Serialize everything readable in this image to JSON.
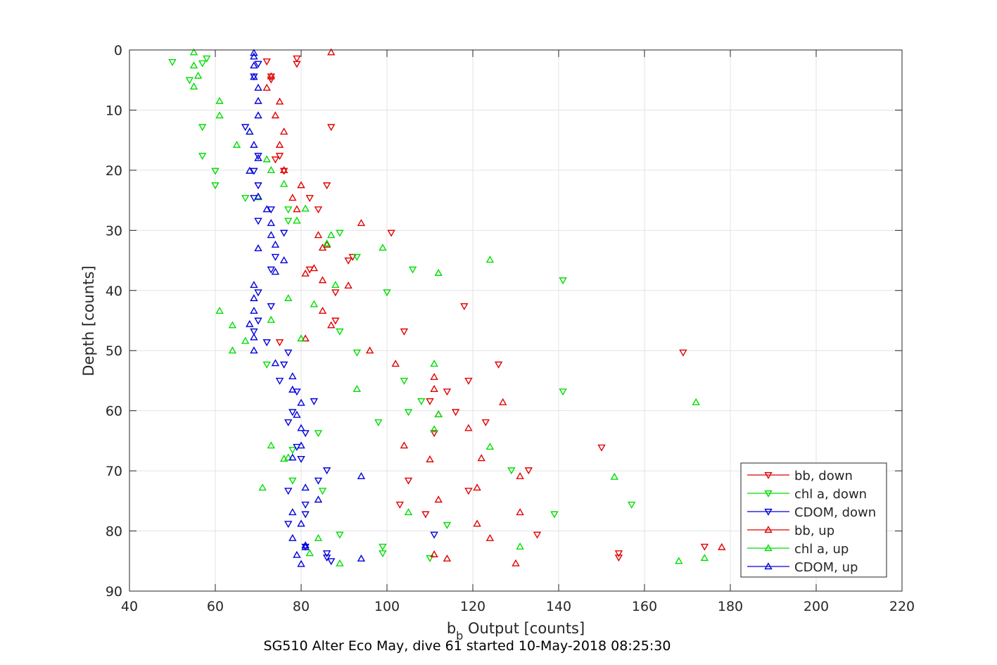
{
  "chart_data": {
    "type": "scatter",
    "xlabel_base": "b",
    "xlabel_sub": "b",
    "xlabel_rest": " Output [counts]",
    "ylabel": "Depth [counts]",
    "caption": "SG510 Alter Eco May, dive 61 started 10-May-2018 08:25:30",
    "xlim": [
      40,
      220
    ],
    "ylim": [
      0,
      90
    ],
    "y_reversed": true,
    "grid": true,
    "x_ticks": [
      "40",
      "60",
      "80",
      "100",
      "120",
      "140",
      "160",
      "180",
      "200",
      "220"
    ],
    "y_ticks": [
      "0",
      "10",
      "20",
      "30",
      "40",
      "50",
      "60",
      "70",
      "80",
      "90"
    ],
    "legend_position": "bottom-right",
    "series": [
      {
        "name": "bb, down",
        "color": "#e00000",
        "marker": "triangle-down",
        "points": [
          [
            79,
            1.4
          ],
          [
            72,
            1.9
          ],
          [
            79,
            2.3
          ],
          [
            73,
            4.4
          ],
          [
            73,
            4.9
          ],
          [
            87,
            12.8
          ],
          [
            74,
            18.2
          ],
          [
            75,
            17.6
          ],
          [
            76,
            20.1
          ],
          [
            86,
            22.5
          ],
          [
            82,
            24.6
          ],
          [
            84,
            26.5
          ],
          [
            101,
            30.4
          ],
          [
            92,
            34.4
          ],
          [
            82,
            36.5
          ],
          [
            91,
            35.0
          ],
          [
            88,
            40.3
          ],
          [
            118,
            42.6
          ],
          [
            88,
            45.0
          ],
          [
            104,
            46.8
          ],
          [
            75,
            48.6
          ],
          [
            169,
            50.3
          ],
          [
            126,
            52.3
          ],
          [
            119,
            55.0
          ],
          [
            114,
            56.8
          ],
          [
            110,
            58.4
          ],
          [
            116,
            60.2
          ],
          [
            123,
            61.9
          ],
          [
            111,
            63.7
          ],
          [
            150,
            66.1
          ],
          [
            133,
            69.9
          ],
          [
            105,
            71.6
          ],
          [
            119,
            73.3
          ],
          [
            103,
            75.6
          ],
          [
            109,
            77.2
          ],
          [
            135,
            80.6
          ],
          [
            174,
            82.6
          ],
          [
            154,
            83.7
          ],
          [
            154,
            84.4
          ]
        ]
      },
      {
        "name": "chl a, down",
        "color": "#00dd00",
        "marker": "triangle-down",
        "points": [
          [
            58,
            1.4
          ],
          [
            57,
            2.2
          ],
          [
            50,
            2.0
          ],
          [
            54,
            5.0
          ],
          [
            57,
            12.8
          ],
          [
            57,
            17.6
          ],
          [
            60,
            20.1
          ],
          [
            60,
            22.5
          ],
          [
            67,
            24.6
          ],
          [
            77,
            26.5
          ],
          [
            77,
            28.4
          ],
          [
            89,
            30.4
          ],
          [
            93,
            34.4
          ],
          [
            106,
            36.5
          ],
          [
            141,
            38.3
          ],
          [
            100,
            40.3
          ],
          [
            89,
            46.8
          ],
          [
            93,
            50.3
          ],
          [
            72,
            52.3
          ],
          [
            104,
            55.0
          ],
          [
            141,
            56.8
          ],
          [
            108,
            58.4
          ],
          [
            105,
            60.2
          ],
          [
            98,
            61.9
          ],
          [
            84,
            63.7
          ],
          [
            78,
            66.5
          ],
          [
            129,
            69.9
          ],
          [
            78,
            71.6
          ],
          [
            85,
            73.3
          ],
          [
            157,
            75.6
          ],
          [
            139,
            77.2
          ],
          [
            114,
            79.0
          ],
          [
            89,
            80.6
          ],
          [
            99,
            82.6
          ],
          [
            99,
            83.7
          ],
          [
            110,
            84.5
          ]
        ]
      },
      {
        "name": "CDOM, down",
        "color": "#0000dd",
        "marker": "triangle-down",
        "points": [
          [
            70,
            2.3
          ],
          [
            69,
            4.4
          ],
          [
            67,
            12.8
          ],
          [
            70,
            17.6
          ],
          [
            69,
            20.1
          ],
          [
            70,
            22.5
          ],
          [
            69,
            24.6
          ],
          [
            73,
            26.5
          ],
          [
            70,
            28.4
          ],
          [
            76,
            30.4
          ],
          [
            74,
            34.4
          ],
          [
            73,
            36.5
          ],
          [
            70,
            40.3
          ],
          [
            73,
            42.6
          ],
          [
            70,
            45.0
          ],
          [
            69,
            46.8
          ],
          [
            72,
            48.6
          ],
          [
            77,
            50.3
          ],
          [
            76,
            52.3
          ],
          [
            75,
            55.0
          ],
          [
            79,
            56.8
          ],
          [
            83,
            58.4
          ],
          [
            78,
            60.2
          ],
          [
            77,
            61.9
          ],
          [
            81,
            63.7
          ],
          [
            79,
            66.0
          ],
          [
            80,
            68.0
          ],
          [
            86,
            69.9
          ],
          [
            84,
            71.6
          ],
          [
            77,
            73.3
          ],
          [
            81,
            75.6
          ],
          [
            81,
            77.2
          ],
          [
            77,
            78.8
          ],
          [
            111,
            80.6
          ],
          [
            81,
            82.6
          ],
          [
            86,
            83.7
          ],
          [
            86,
            84.4
          ],
          [
            87,
            85.0
          ]
        ]
      },
      {
        "name": "bb, up",
        "color": "#e00000",
        "marker": "triangle-up",
        "points": [
          [
            87,
            0.4
          ],
          [
            73,
            4.4
          ],
          [
            72,
            6.3
          ],
          [
            75,
            8.6
          ],
          [
            74,
            10.9
          ],
          [
            76,
            13.6
          ],
          [
            75,
            15.8
          ],
          [
            76,
            20.0
          ],
          [
            80,
            22.5
          ],
          [
            78,
            24.6
          ],
          [
            79,
            26.5
          ],
          [
            94,
            28.8
          ],
          [
            84,
            30.8
          ],
          [
            86,
            32.4
          ],
          [
            85,
            32.9
          ],
          [
            83,
            36.3
          ],
          [
            81,
            37.2
          ],
          [
            85,
            38.3
          ],
          [
            91,
            39.2
          ],
          [
            85,
            43.4
          ],
          [
            87,
            45.8
          ],
          [
            81,
            48.0
          ],
          [
            96,
            50.0
          ],
          [
            102,
            52.2
          ],
          [
            111,
            54.4
          ],
          [
            111,
            56.4
          ],
          [
            127,
            58.6
          ],
          [
            112,
            60.6
          ],
          [
            119,
            62.9
          ],
          [
            104,
            65.8
          ],
          [
            122,
            67.9
          ],
          [
            110,
            68.1
          ],
          [
            131,
            70.9
          ],
          [
            121,
            72.8
          ],
          [
            112,
            74.8
          ],
          [
            131,
            76.9
          ],
          [
            121,
            78.8
          ],
          [
            124,
            81.2
          ],
          [
            178,
            82.7
          ],
          [
            111,
            83.9
          ],
          [
            114,
            84.6
          ],
          [
            130,
            85.4
          ]
        ]
      },
      {
        "name": "chl a, up",
        "color": "#00dd00",
        "marker": "triangle-up",
        "points": [
          [
            55,
            0.4
          ],
          [
            55,
            2.6
          ],
          [
            56,
            4.3
          ],
          [
            55,
            6.1
          ],
          [
            61,
            8.5
          ],
          [
            61,
            10.9
          ],
          [
            68,
            13.6
          ],
          [
            65,
            15.8
          ],
          [
            72,
            18.2
          ],
          [
            73,
            20.0
          ],
          [
            76,
            22.3
          ],
          [
            70,
            24.5
          ],
          [
            81,
            26.4
          ],
          [
            79,
            28.4
          ],
          [
            87,
            30.8
          ],
          [
            86,
            32.2
          ],
          [
            99,
            32.9
          ],
          [
            124,
            34.9
          ],
          [
            112,
            37.1
          ],
          [
            88,
            39.1
          ],
          [
            77,
            41.3
          ],
          [
            83,
            42.3
          ],
          [
            61,
            43.4
          ],
          [
            73,
            44.9
          ],
          [
            64,
            45.8
          ],
          [
            67,
            48.4
          ],
          [
            80,
            48.0
          ],
          [
            64,
            50.0
          ],
          [
            111,
            52.2
          ],
          [
            93,
            56.4
          ],
          [
            172,
            58.6
          ],
          [
            112,
            60.6
          ],
          [
            111,
            63.1
          ],
          [
            73,
            65.8
          ],
          [
            124,
            66.0
          ],
          [
            77,
            67.8
          ],
          [
            76,
            68.0
          ],
          [
            153,
            71.0
          ],
          [
            71,
            72.8
          ],
          [
            105,
            76.9
          ],
          [
            84,
            81.2
          ],
          [
            131,
            82.6
          ],
          [
            82,
            83.7
          ],
          [
            174,
            84.5
          ],
          [
            168,
            85.0
          ],
          [
            89,
            85.4
          ]
        ]
      },
      {
        "name": "CDOM, up",
        "color": "#0000dd",
        "marker": "triangle-up",
        "points": [
          [
            69,
            0.5
          ],
          [
            69,
            1.1
          ],
          [
            69,
            2.6
          ],
          [
            69,
            4.5
          ],
          [
            70,
            6.3
          ],
          [
            70,
            8.5
          ],
          [
            70,
            10.9
          ],
          [
            68,
            13.6
          ],
          [
            69,
            15.8
          ],
          [
            70,
            18.0
          ],
          [
            68,
            20.1
          ],
          [
            70,
            24.4
          ],
          [
            72,
            26.5
          ],
          [
            73,
            28.8
          ],
          [
            73,
            30.8
          ],
          [
            74,
            32.4
          ],
          [
            70,
            33.0
          ],
          [
            76,
            35.0
          ],
          [
            74,
            36.9
          ],
          [
            69,
            39.1
          ],
          [
            69,
            41.3
          ],
          [
            69,
            43.4
          ],
          [
            68,
            45.6
          ],
          [
            69,
            47.8
          ],
          [
            69,
            50.0
          ],
          [
            74,
            52.1
          ],
          [
            78,
            54.3
          ],
          [
            78,
            56.5
          ],
          [
            80,
            58.7
          ],
          [
            79,
            60.7
          ],
          [
            80,
            62.9
          ],
          [
            80,
            65.8
          ],
          [
            78,
            67.8
          ],
          [
            94,
            70.9
          ],
          [
            81,
            72.8
          ],
          [
            84,
            74.8
          ],
          [
            78,
            76.9
          ],
          [
            80,
            78.8
          ],
          [
            78,
            81.2
          ],
          [
            81,
            82.4
          ],
          [
            81,
            82.7
          ],
          [
            79,
            84.0
          ],
          [
            94,
            84.6
          ],
          [
            80,
            85.5
          ]
        ]
      }
    ]
  }
}
